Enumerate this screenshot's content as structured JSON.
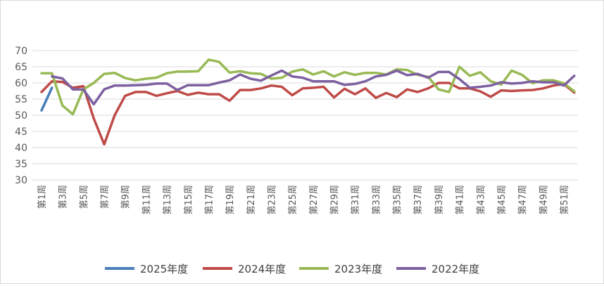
{
  "chart_data": {
    "type": "line",
    "title": "",
    "xlabel": "",
    "ylabel": "",
    "ylim": [
      30,
      70
    ],
    "yticks": [
      30,
      35,
      40,
      45,
      50,
      55,
      60,
      65,
      70
    ],
    "grid": true,
    "legend_position": "bottom",
    "x_tick_labels": [
      "第1周",
      "第3周",
      "第5周",
      "第7周",
      "第9周",
      "第11周",
      "第13周",
      "第15周",
      "第17周",
      "第19周",
      "第21周",
      "第23周",
      "第25周",
      "第27周",
      "第29周",
      "第31周",
      "第33周",
      "第35周",
      "第37周",
      "第39周",
      "第41周",
      "第43周",
      "第45周",
      "第47周",
      "第49周",
      "第51周"
    ],
    "weeks": 52,
    "series": [
      {
        "name": "2025年度",
        "color": "#4a7ebb",
        "start_week": 1,
        "values": [
          51.5,
          58.5
        ]
      },
      {
        "name": "2024年度",
        "color": "#be4b48",
        "start_week": 1,
        "values": [
          57.2,
          60.5,
          60.3,
          58.5,
          59,
          49,
          41,
          50,
          56,
          57.2,
          57.2,
          56,
          56.8,
          57.5,
          56.3,
          57,
          56.5,
          56.5,
          54.5,
          57.8,
          57.8,
          58.3,
          59.2,
          58.8,
          56.2,
          58.3,
          58.5,
          58.8,
          55.5,
          58.2,
          56.5,
          58.3,
          55.4,
          56.9,
          55.6,
          58,
          57.2,
          58.3,
          60,
          60,
          58.3,
          58.3,
          57.4,
          55.7,
          57.7,
          57.5,
          57.7,
          57.8,
          58.3,
          59.2,
          59.6,
          57
        ]
      },
      {
        "name": "2023年度",
        "color": "#98b954",
        "start_week": 1,
        "values": [
          63,
          63,
          53,
          50.3,
          58,
          60,
          62.8,
          63.1,
          61.5,
          60.8,
          61.3,
          61.6,
          63,
          63.5,
          63.5,
          63.6,
          67.2,
          66.5,
          63.2,
          63.6,
          63,
          62.8,
          61.3,
          61.6,
          63.5,
          64.2,
          62.6,
          63.6,
          62,
          63.3,
          62.5,
          63.1,
          63.1,
          62.6,
          64.2,
          64,
          62.5,
          61.9,
          58,
          57.2,
          65,
          62.2,
          63.3,
          60.5,
          59.5,
          63.8,
          62.5,
          59.9,
          60.8,
          60.8,
          59.9,
          57.4
        ]
      },
      {
        "name": "2022年度",
        "color": "#7d60a0",
        "start_week": 2,
        "values": [
          62,
          61.4,
          58,
          58,
          53.4,
          58,
          59.2,
          59.2,
          59.3,
          59.4,
          59.8,
          59.8,
          57.8,
          59.3,
          59.3,
          59.3,
          60.1,
          60.8,
          62.6,
          61.3,
          60.7,
          62.3,
          63.8,
          62,
          61.6,
          60.5,
          60.5,
          60.5,
          59.4,
          59.7,
          60.5,
          62,
          62.5,
          63.8,
          62.4,
          62.8,
          61.6,
          63.4,
          63.4,
          61.2,
          58.5,
          58.8,
          59.2,
          60.2,
          59.8,
          60,
          60.5,
          60.2,
          60.2,
          59.2,
          62.2
        ]
      }
    ]
  }
}
